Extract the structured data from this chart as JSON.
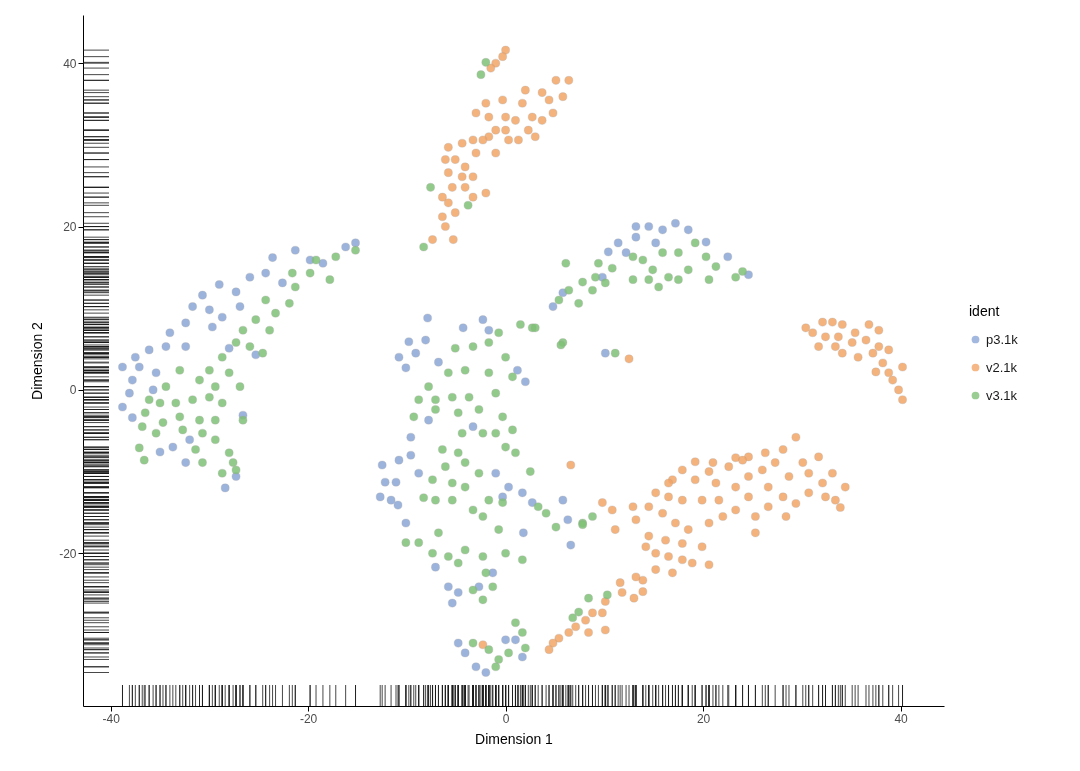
{
  "chart_data": {
    "type": "scatter",
    "xlabel": "Dimension 1",
    "ylabel": "Dimension 2",
    "legend_title": "ident",
    "legend": "right",
    "marker": "circle",
    "grid": false,
    "xlim": [
      -42.8,
      44.4
    ],
    "ylim": [
      -38.7,
      45.9
    ],
    "xticks": [
      -40,
      -20,
      0,
      20,
      40
    ],
    "yticks": [
      -20,
      0,
      20,
      40
    ],
    "series": [
      {
        "name": "p3.1k",
        "color": "#8ba6d6",
        "x": [
          -15.2,
          -16.2,
          -21.3,
          -23.6,
          -25.9,
          -29.0,
          -30.7,
          -27.3,
          -24.3,
          -22.6,
          -31.7,
          -30.0,
          -32.4,
          -28.7,
          -26.9,
          -34.0,
          -29.7,
          -36.1,
          -34.4,
          -32.4,
          -37.5,
          -38.8,
          -37.1,
          -35.4,
          -37.8,
          -38.1,
          -38.8,
          -37.8,
          -35.7,
          -35.0,
          -33.7,
          -32.0,
          -32.4,
          -28.4,
          -27.3,
          -26.6,
          -25.3,
          -28.0,
          -19.8,
          -18.5,
          -7.9,
          -4.3,
          -2.3,
          -1.7,
          -9.8,
          -8.1,
          -10.8,
          -9.1,
          -6.8,
          -10.1,
          1.2,
          2.0,
          -9.6,
          -12.5,
          -10.8,
          -9.6,
          -8.8,
          -12.2,
          -11.1,
          -12.7,
          -11.6,
          -10.9,
          -10.1,
          -1.0,
          0.3,
          1.7,
          2.7,
          -0.3,
          5.8,
          6.3,
          6.6,
          1.8,
          -5.8,
          -5.4,
          -4.8,
          -2.7,
          -1.3,
          -7.1,
          -4.8,
          -4.1,
          -3.0,
          -2.0,
          0.0,
          1.0,
          1.7,
          -3.3,
          -7.8,
          13.2,
          14.5,
          15.9,
          17.2,
          18.5,
          13.2,
          11.4,
          10.4,
          12.2,
          15.2,
          20.3,
          22.5,
          24.6,
          4.8,
          5.8,
          9.8,
          10.1
        ],
        "values": [
          18.0,
          17.5,
          17.1,
          16.2,
          13.8,
          12.9,
          11.6,
          12.0,
          14.3,
          13.1,
          10.2,
          9.8,
          8.2,
          8.9,
          10.2,
          7.0,
          7.7,
          4.9,
          5.3,
          5.3,
          4.0,
          2.8,
          2.8,
          2.1,
          1.2,
          -0.4,
          -2.1,
          -3.4,
          0.0,
          -7.6,
          -7.0,
          -6.1,
          -8.9,
          -12.0,
          -10.6,
          -3.1,
          4.3,
          5.1,
          15.9,
          15.5,
          8.8,
          7.6,
          8.6,
          7.3,
          5.9,
          6.1,
          4.0,
          4.5,
          3.4,
          2.7,
          2.4,
          1.0,
          -5.8,
          -9.2,
          -8.6,
          -8.0,
          -10.2,
          -11.3,
          -11.3,
          -13.1,
          -13.5,
          -14.1,
          -16.3,
          -10.2,
          -11.9,
          -12.6,
          -13.8,
          -13.1,
          -13.5,
          -15.9,
          -19.0,
          -17.5,
          -24.1,
          -26.1,
          -24.8,
          -24.1,
          -22.4,
          -21.7,
          -31.0,
          -32.2,
          -33.9,
          -34.6,
          -30.6,
          -30.6,
          -32.7,
          -4.5,
          -3.7,
          20.0,
          20.0,
          19.6,
          20.4,
          19.6,
          18.7,
          18.0,
          16.9,
          16.8,
          18.0,
          18.1,
          16.3,
          14.1,
          10.2,
          11.9,
          13.8,
          4.5
        ]
      },
      {
        "name": "v2.1k",
        "color": "#f3a566",
        "x": [
          0.0,
          -0.3,
          -1.0,
          -1.5,
          6.4,
          5.1,
          5.8,
          4.4,
          4.8,
          3.7,
          2.0,
          1.7,
          2.7,
          2.3,
          3.0,
          1.0,
          0.0,
          -0.3,
          -2.0,
          -3.0,
          -1.7,
          -1.0,
          0.0,
          0.3,
          -1.7,
          -2.3,
          -3.3,
          -4.4,
          -3.0,
          -1.0,
          -5.8,
          -5.1,
          -6.1,
          -4.1,
          -3.3,
          -4.4,
          -5.8,
          -5.4,
          -4.1,
          -2.0,
          -3.3,
          -6.4,
          -5.8,
          -5.1,
          -6.4,
          -6.1,
          -5.3,
          -7.4,
          3.7,
          1.3,
          6.6,
          -2.3,
          12.5,
          30.4,
          32.1,
          33.1,
          34.1,
          31.1,
          32.4,
          33.7,
          35.4,
          36.8,
          37.8,
          31.7,
          33.4,
          35.1,
          36.5,
          37.8,
          34.1,
          35.7,
          37.2,
          38.8,
          38.2,
          37.5,
          38.8,
          40.2,
          39.2,
          39.8,
          40.2,
          29.4,
          28.1,
          26.3,
          24.6,
          23.3,
          31.7,
          30.1,
          33.1,
          34.4,
          33.4,
          33.9,
          32.1,
          32.4,
          30.7,
          29.4,
          28.1,
          26.6,
          28.7,
          26.0,
          24.6,
          22.6,
          21.0,
          19.2,
          17.9,
          16.9,
          19.2,
          21.3,
          23.3,
          24.6,
          26.6,
          28.4,
          25.3,
          25.3,
          23.3,
          21.6,
          19.9,
          22.0,
          20.6,
          17.9,
          16.5,
          15.2,
          14.5,
          12.9,
          13.2,
          15.9,
          17.2,
          18.5,
          19.9,
          20.6,
          18.9,
          17.9,
          16.5,
          15.2,
          14.2,
          14.5,
          16.2,
          17.9,
          15.2,
          16.9,
          13.9,
          13.2,
          11.6,
          11.8,
          13.9,
          13.0,
          10.1,
          9.8,
          8.8,
          8.1,
          10.1,
          7.1,
          6.4,
          8.4,
          5.4,
          4.8,
          4.4,
          9.8,
          10.8,
          11.1,
          16.5,
          20.6,
          24.0,
          27.3,
          30.7
        ],
        "values": [
          41.6,
          40.8,
          40.0,
          39.4,
          37.9,
          37.9,
          35.9,
          35.5,
          33.9,
          33.0,
          36.7,
          35.1,
          33.4,
          31.8,
          31.0,
          33.0,
          33.4,
          35.5,
          35.1,
          33.9,
          33.4,
          31.8,
          31.8,
          30.6,
          31.0,
          30.6,
          30.6,
          30.2,
          29.0,
          29.0,
          29.7,
          28.2,
          28.2,
          27.3,
          26.1,
          26.1,
          26.6,
          24.8,
          24.8,
          24.1,
          23.6,
          23.6,
          22.9,
          21.7,
          21.2,
          20.0,
          18.4,
          18.4,
          36.4,
          30.6,
          -9.2,
          -31.2,
          3.8,
          7.6,
          8.3,
          8.3,
          8.0,
          7.0,
          6.5,
          6.5,
          7.0,
          8.0,
          7.3,
          5.3,
          5.3,
          5.8,
          6.1,
          5.3,
          4.5,
          4.0,
          4.5,
          4.9,
          3.3,
          2.2,
          2.1,
          2.8,
          1.2,
          0.0,
          -1.2,
          -5.8,
          -7.3,
          -7.7,
          -8.2,
          -8.3,
          -8.2,
          -8.9,
          -10.2,
          -11.9,
          -13.5,
          -14.4,
          -11.4,
          -13.1,
          -12.6,
          -13.9,
          -13.1,
          -11.9,
          -10.6,
          -9.8,
          -10.6,
          -9.4,
          -8.9,
          -8.8,
          -9.8,
          -11.0,
          -11.0,
          -11.4,
          -11.9,
          -13.1,
          -14.3,
          -15.5,
          -15.5,
          -17.5,
          -14.7,
          -13.5,
          -13.5,
          -15.5,
          -16.3,
          -13.5,
          -13.1,
          -12.6,
          -14.3,
          -14.3,
          -15.9,
          -15.1,
          -16.3,
          -17.1,
          -19.2,
          -21.4,
          -21.2,
          -20.8,
          -20.4,
          -20.0,
          -19.2,
          -17.9,
          -18.4,
          -18.8,
          -22.0,
          -22.4,
          -23.3,
          -22.9,
          -23.6,
          -24.8,
          -24.7,
          -25.5,
          -25.9,
          -27.3,
          -27.3,
          -28.2,
          -29.4,
          -29.0,
          -29.7,
          -29.7,
          -30.4,
          -31.0,
          -31.8,
          -13.8,
          -14.7,
          -17.1,
          -11.4,
          -10.0,
          -8.6,
          -8.9,
          -10.2
        ]
      },
      {
        "name": "v3.1k",
        "color": "#80c177",
        "x": [
          -15.2,
          -17.2,
          -19.2,
          -17.8,
          -19.8,
          -21.3,
          -21.9,
          -23.3,
          -24.3,
          -25.3,
          -26.6,
          -23.9,
          -27.3,
          -25.9,
          -24.6,
          -28.7,
          -30.0,
          -28.0,
          -26.9,
          -29.4,
          -31.0,
          -33.0,
          -34.4,
          -36.1,
          -36.5,
          -35.0,
          -33.4,
          -31.7,
          -30.0,
          -28.7,
          -29.4,
          -31.0,
          -33.0,
          -34.7,
          -36.8,
          -35.4,
          -32.7,
          -30.7,
          -29.4,
          -31.4,
          -37.1,
          -36.6,
          -30.7,
          -28.0,
          -27.6,
          -28.7,
          -27.3,
          -26.6,
          -21.6,
          -2.0,
          -2.5,
          -7.6,
          -3.8,
          -8.3,
          1.5,
          2.7,
          5.8,
          -5.1,
          -3.3,
          -1.7,
          -0.7,
          0.0,
          -5.8,
          -4.1,
          -1.7,
          0.7,
          -7.8,
          -8.8,
          -7.1,
          -5.4,
          -3.7,
          -1.0,
          -9.3,
          -7.1,
          -4.8,
          -2.7,
          -0.3,
          -4.4,
          -2.3,
          -1.0,
          0.7,
          0.0,
          1.0,
          -6.4,
          -4.8,
          -6.1,
          -4.1,
          -2.7,
          2.5,
          -7.4,
          -5.4,
          -4.1,
          -8.3,
          -7.1,
          -5.4,
          -3.3,
          -1.7,
          -0.3,
          -2.3,
          3.3,
          4.1,
          5.1,
          7.8,
          8.8,
          -0.7,
          -10.1,
          -8.8,
          -6.8,
          -7.4,
          -5.8,
          -4.1,
          -2.3,
          -4.8,
          -2.0,
          0.0,
          1.7,
          -3.3,
          -1.3,
          -2.3,
          1.0,
          1.7,
          -3.3,
          -1.7,
          -0.7,
          0.3,
          2.0,
          -1.0,
          7.8,
          6.1,
          9.4,
          10.8,
          9.1,
          7.8,
          6.4,
          5.4,
          7.4,
          8.8,
          10.1,
          12.9,
          12.9,
          13.9,
          14.9,
          15.9,
          16.5,
          17.5,
          18.5,
          19.2,
          20.3,
          21.3,
          20.6,
          17.5,
          15.5,
          14.5,
          23.3,
          24.0,
          5.6,
          11.1,
          3.0,
          8.4,
          10.3,
          7.4,
          6.8
        ],
        "values": [
          17.1,
          16.3,
          15.9,
          13.5,
          14.3,
          12.6,
          10.6,
          9.4,
          11.0,
          8.6,
          7.3,
          7.3,
          5.8,
          5.3,
          4.5,
          4.0,
          2.4,
          2.1,
          0.4,
          0.4,
          1.2,
          2.4,
          0.4,
          -1.2,
          -2.8,
          -1.6,
          -1.6,
          -1.2,
          -0.9,
          -1.6,
          -3.7,
          -3.7,
          -3.3,
          -4.0,
          -4.5,
          -5.3,
          -4.9,
          -5.3,
          -6.1,
          -7.3,
          -7.1,
          -8.6,
          -8.9,
          -7.7,
          -8.9,
          -10.2,
          -9.8,
          -3.7,
          14.3,
          40.1,
          38.6,
          24.8,
          22.6,
          17.5,
          8.0,
          7.6,
          5.8,
          5.1,
          5.3,
          5.8,
          7.0,
          4.0,
          2.1,
          2.4,
          2.1,
          1.6,
          0.4,
          -1.2,
          -1.2,
          -0.9,
          -0.9,
          -0.4,
          -3.3,
          -2.4,
          -2.8,
          -2.4,
          -3.3,
          -5.3,
          -5.3,
          -5.3,
          -4.9,
          -7.0,
          -7.7,
          -7.3,
          -7.7,
          -9.4,
          -8.9,
          -10.2,
          -10.0,
          -11.0,
          -11.4,
          -11.9,
          -13.2,
          -13.5,
          -13.5,
          -14.7,
          -13.5,
          -13.8,
          -15.5,
          -14.3,
          -15.1,
          -16.8,
          -16.3,
          -15.5,
          -17.1,
          -18.7,
          -18.7,
          -17.5,
          -20.0,
          -20.4,
          -19.6,
          -20.4,
          -21.2,
          -22.4,
          -20.0,
          -20.8,
          -24.5,
          -24.1,
          -25.7,
          -28.5,
          -29.7,
          -31.0,
          -31.8,
          -33.0,
          -32.2,
          -31.6,
          -33.9,
          -16.5,
          15.5,
          15.5,
          14.9,
          13.8,
          13.2,
          12.2,
          11.0,
          10.6,
          12.2,
          13.1,
          16.3,
          13.5,
          15.9,
          14.7,
          16.8,
          13.8,
          16.8,
          14.7,
          18.0,
          16.3,
          15.1,
          13.5,
          13.5,
          12.6,
          13.5,
          13.8,
          14.5,
          5.5,
          4.5,
          7.6,
          -25.5,
          -25.1,
          -27.2,
          -27.9
        ]
      }
    ]
  }
}
